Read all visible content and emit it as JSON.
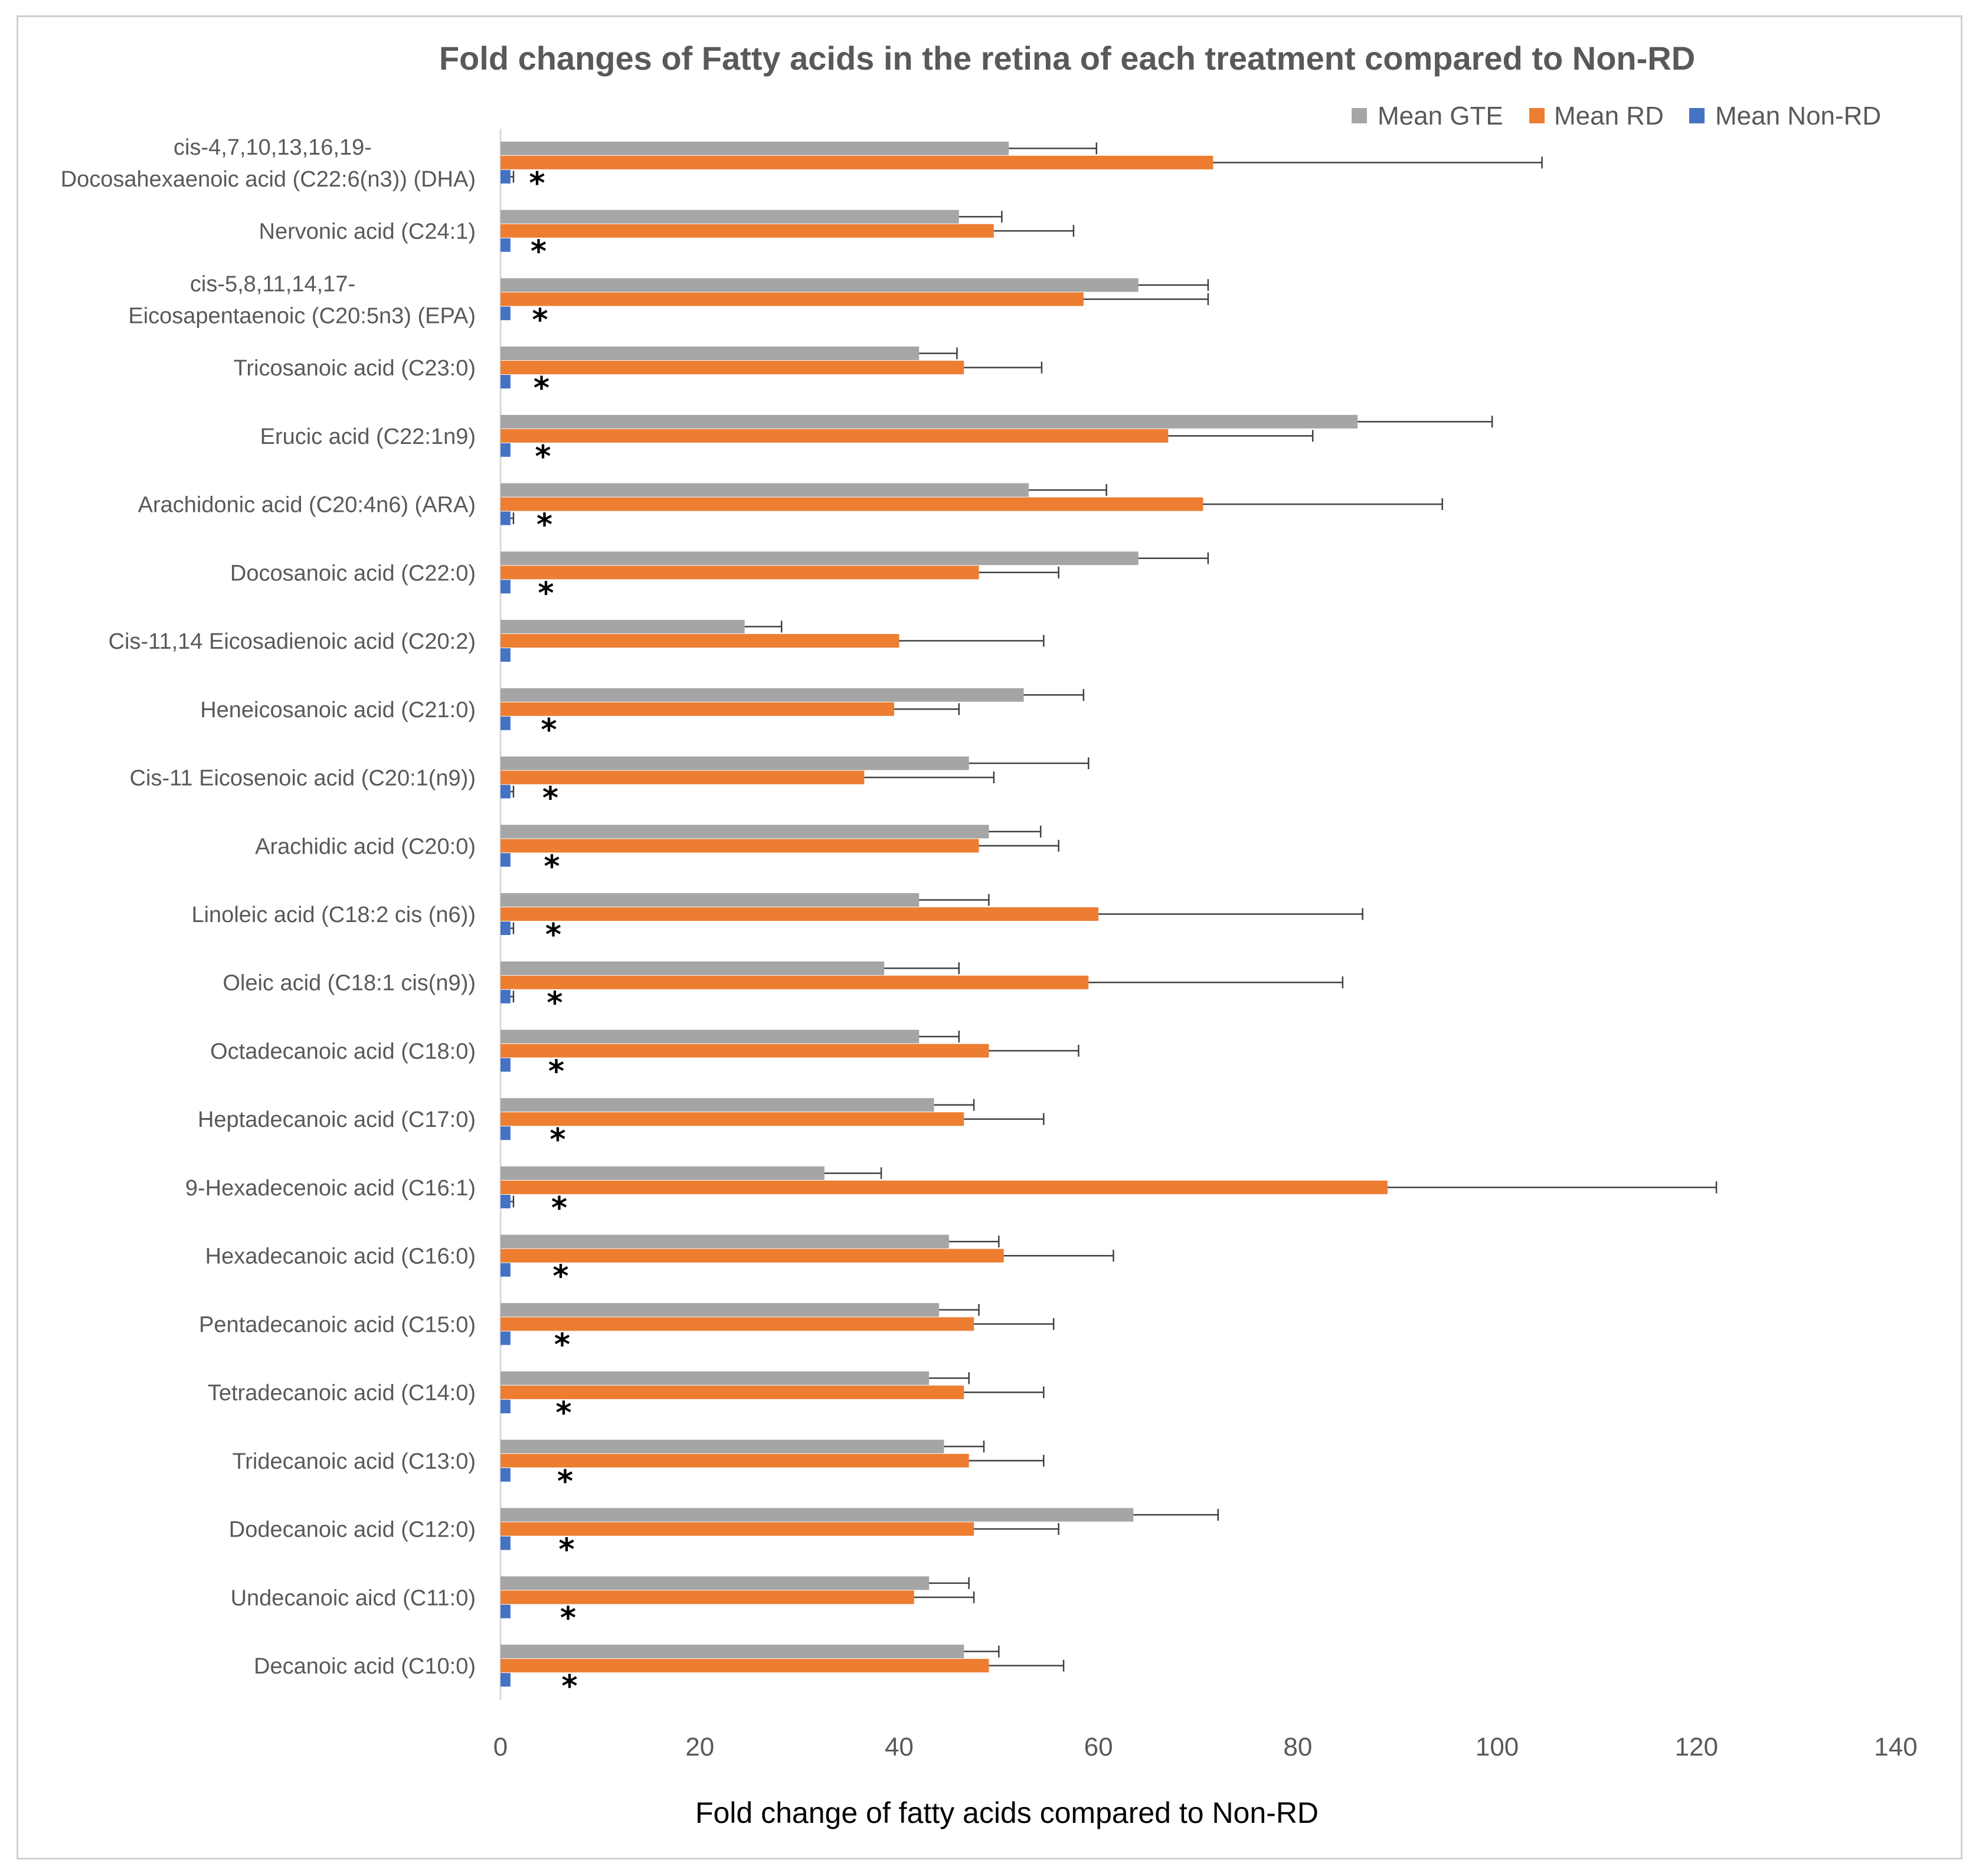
{
  "chart_data": {
    "type": "bar",
    "orientation": "horizontal",
    "title": "Fold changes of Fatty acids in the retina of each treatment compared to Non-RD",
    "xlabel": "Fold change of fatty acids compared to Non-RD",
    "ylabel": "",
    "xlim": [
      0,
      140
    ],
    "xticks": [
      0,
      20,
      40,
      60,
      80,
      100,
      120,
      140
    ],
    "legend_position": "top-right",
    "legend_order": [
      "Mean GTE",
      "Mean RD",
      "Mean Non-RD"
    ],
    "significance_marker": "*",
    "categories": [
      {
        "label": [
          "cis-4,7,10,13,16,19-",
          "Docosahexaenoic acid (C22:6(n3)) (DHA)"
        ],
        "significant": true
      },
      {
        "label": [
          "Nervonic acid (C24:1)"
        ],
        "significant": true
      },
      {
        "label": [
          "cis-5,8,11,14,17-",
          "Eicosapentaenoic (C20:5n3) (EPA)"
        ],
        "significant": true
      },
      {
        "label": [
          "Tricosanoic acid (C23:0)"
        ],
        "significant": true
      },
      {
        "label": [
          "Erucic acid (C22:1n9)"
        ],
        "significant": true
      },
      {
        "label": [
          "Arachidonic acid (C20:4n6) (ARA)"
        ],
        "significant": true
      },
      {
        "label": [
          "Docosanoic acid (C22:0)"
        ],
        "significant": true
      },
      {
        "label": [
          "Cis-11,14 Eicosadienoic acid (C20:2)"
        ],
        "significant": false
      },
      {
        "label": [
          "Heneicosanoic acid (C21:0)"
        ],
        "significant": true
      },
      {
        "label": [
          "Cis-11 Eicosenoic acid (C20:1(n9))"
        ],
        "significant": true
      },
      {
        "label": [
          "Arachidic acid (C20:0)"
        ],
        "significant": true
      },
      {
        "label": [
          "Linoleic acid (C18:2 cis (n6))"
        ],
        "significant": true
      },
      {
        "label": [
          "Oleic acid (C18:1 cis(n9))"
        ],
        "significant": true
      },
      {
        "label": [
          "Octadecanoic acid (C18:0)"
        ],
        "significant": true
      },
      {
        "label": [
          "Heptadecanoic acid (C17:0)"
        ],
        "significant": true
      },
      {
        "label": [
          "9-Hexadecenoic acid (C16:1)"
        ],
        "significant": true
      },
      {
        "label": [
          "Hexadecanoic acid (C16:0)"
        ],
        "significant": true
      },
      {
        "label": [
          "Pentadecanoic acid (C15:0)"
        ],
        "significant": true
      },
      {
        "label": [
          "Tetradecanoic acid (C14:0)"
        ],
        "significant": true
      },
      {
        "label": [
          "Tridecanoic acid (C13:0)"
        ],
        "significant": true
      },
      {
        "label": [
          "Dodecanoic acid (C12:0)"
        ],
        "significant": true
      },
      {
        "label": [
          "Undecanoic aicd (C11:0)"
        ],
        "significant": true
      },
      {
        "label": [
          "Decanoic acid (C10:0)"
        ],
        "significant": true
      }
    ],
    "series": [
      {
        "name": "Mean GTE",
        "color": "#a5a5a5",
        "values": [
          51,
          46,
          64,
          42,
          86,
          53,
          64,
          24.5,
          52.5,
          47,
          49,
          42,
          38.5,
          42,
          43.5,
          32.5,
          45,
          44,
          43,
          44.5,
          63.5,
          43,
          46.5
        ],
        "errors": [
          8.8,
          4.3,
          7,
          3.8,
          13.5,
          7.8,
          7,
          3.7,
          6,
          12,
          5.2,
          7,
          7.5,
          4,
          4,
          5.7,
          5,
          4,
          4,
          4,
          8.5,
          4,
          3.5
        ]
      },
      {
        "name": "Mean RD",
        "color": "#ed7d31",
        "values": [
          71.5,
          49.5,
          58.5,
          46.5,
          67,
          70.5,
          48,
          40,
          39.5,
          36.5,
          48,
          60,
          59,
          49,
          46.5,
          89,
          50.5,
          47.5,
          46.5,
          47,
          47.5,
          41.5,
          49
        ],
        "errors": [
          33,
          8,
          12.5,
          7.8,
          14.5,
          24,
          8,
          14.5,
          6.5,
          13,
          8,
          26.5,
          25.5,
          9,
          8,
          33,
          11,
          8,
          8,
          7.5,
          8.5,
          6,
          7.5
        ]
      },
      {
        "name": "Mean Non-RD",
        "color": "#4472c4",
        "values": [
          1,
          1,
          1,
          1,
          1,
          1,
          1,
          1,
          1,
          1,
          1,
          1,
          1,
          1,
          1,
          1,
          1,
          1,
          1,
          1,
          1,
          1,
          1
        ],
        "errors": [
          0.3,
          0,
          0,
          0,
          0,
          0.3,
          0,
          0,
          0,
          0.3,
          0,
          0.3,
          0.3,
          0,
          0,
          0.3,
          0,
          0,
          0,
          0,
          0,
          0,
          0
        ]
      }
    ]
  }
}
